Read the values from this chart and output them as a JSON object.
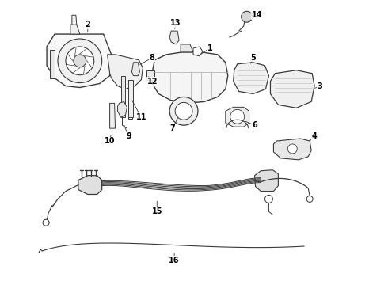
{
  "bg_color": "#ffffff",
  "line_color": "#3a3a3a",
  "text_color": "#000000",
  "label_fontsize": 7,
  "figsize": [
    4.9,
    3.6
  ],
  "dpi": 100
}
